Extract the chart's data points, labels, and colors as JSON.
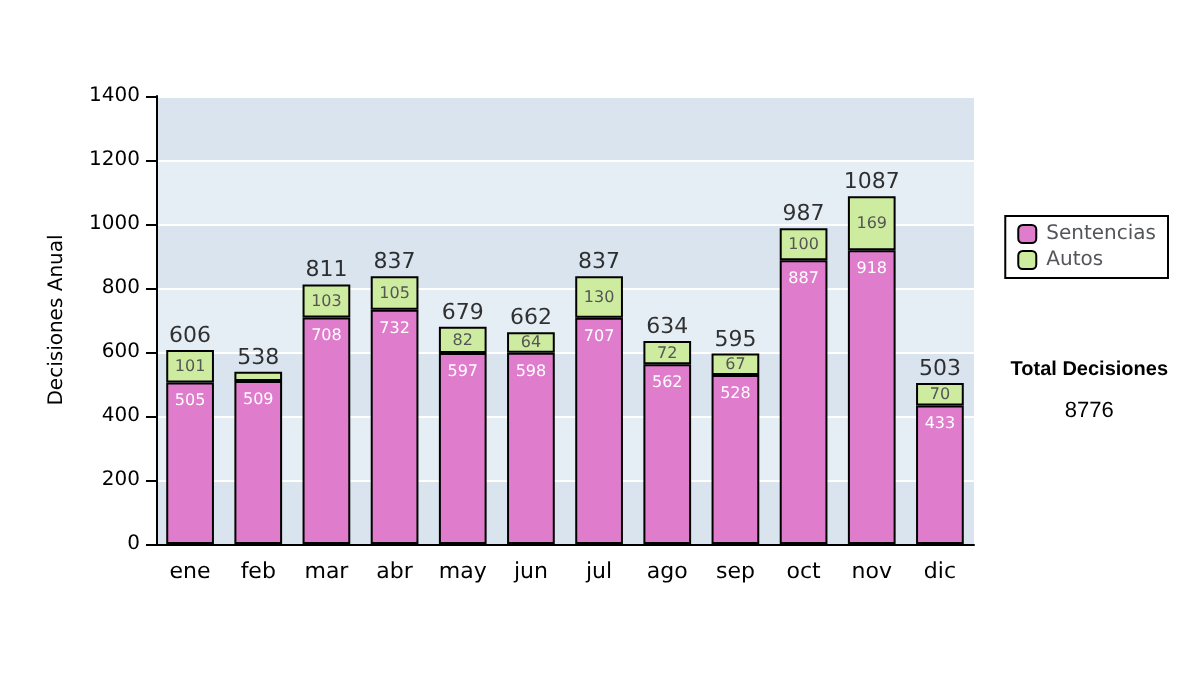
{
  "chart_data": {
    "type": "bar",
    "stacked": true,
    "ylabel": "Decisiones Anual",
    "categories": [
      "ene",
      "feb",
      "mar",
      "abr",
      "may",
      "jun",
      "jul",
      "ago",
      "sep",
      "oct",
      "nov",
      "dic"
    ],
    "series": [
      {
        "name": "Sentencias",
        "color": "#e07ccc",
        "values": [
          505,
          509,
          708,
          732,
          597,
          598,
          707,
          562,
          528,
          887,
          918,
          433
        ],
        "value_labels": [
          "505",
          "509",
          "708",
          "732",
          "597",
          "598",
          "707",
          "562",
          "528",
          "887",
          "918",
          "433"
        ]
      },
      {
        "name": "Autos",
        "color": "#cdeca0",
        "values": [
          101,
          29,
          103,
          105,
          82,
          64,
          130,
          72,
          67,
          100,
          169,
          70
        ],
        "value_labels": [
          "101",
          null,
          "103",
          "105",
          "82",
          "64",
          "130",
          "72",
          "67",
          "100",
          "169",
          "70"
        ]
      }
    ],
    "totals": [
      "606",
      "538",
      "811",
      "837",
      "679",
      "662",
      "837",
      "634",
      "595",
      "987",
      "1087",
      "503"
    ],
    "ylim": [
      0,
      1400
    ],
    "yticks": [
      0,
      200,
      400,
      600,
      800,
      1000,
      1200,
      1400
    ],
    "grid": "y",
    "legend": "right",
    "annotations": [
      "Total Decisiones",
      "8776"
    ]
  }
}
